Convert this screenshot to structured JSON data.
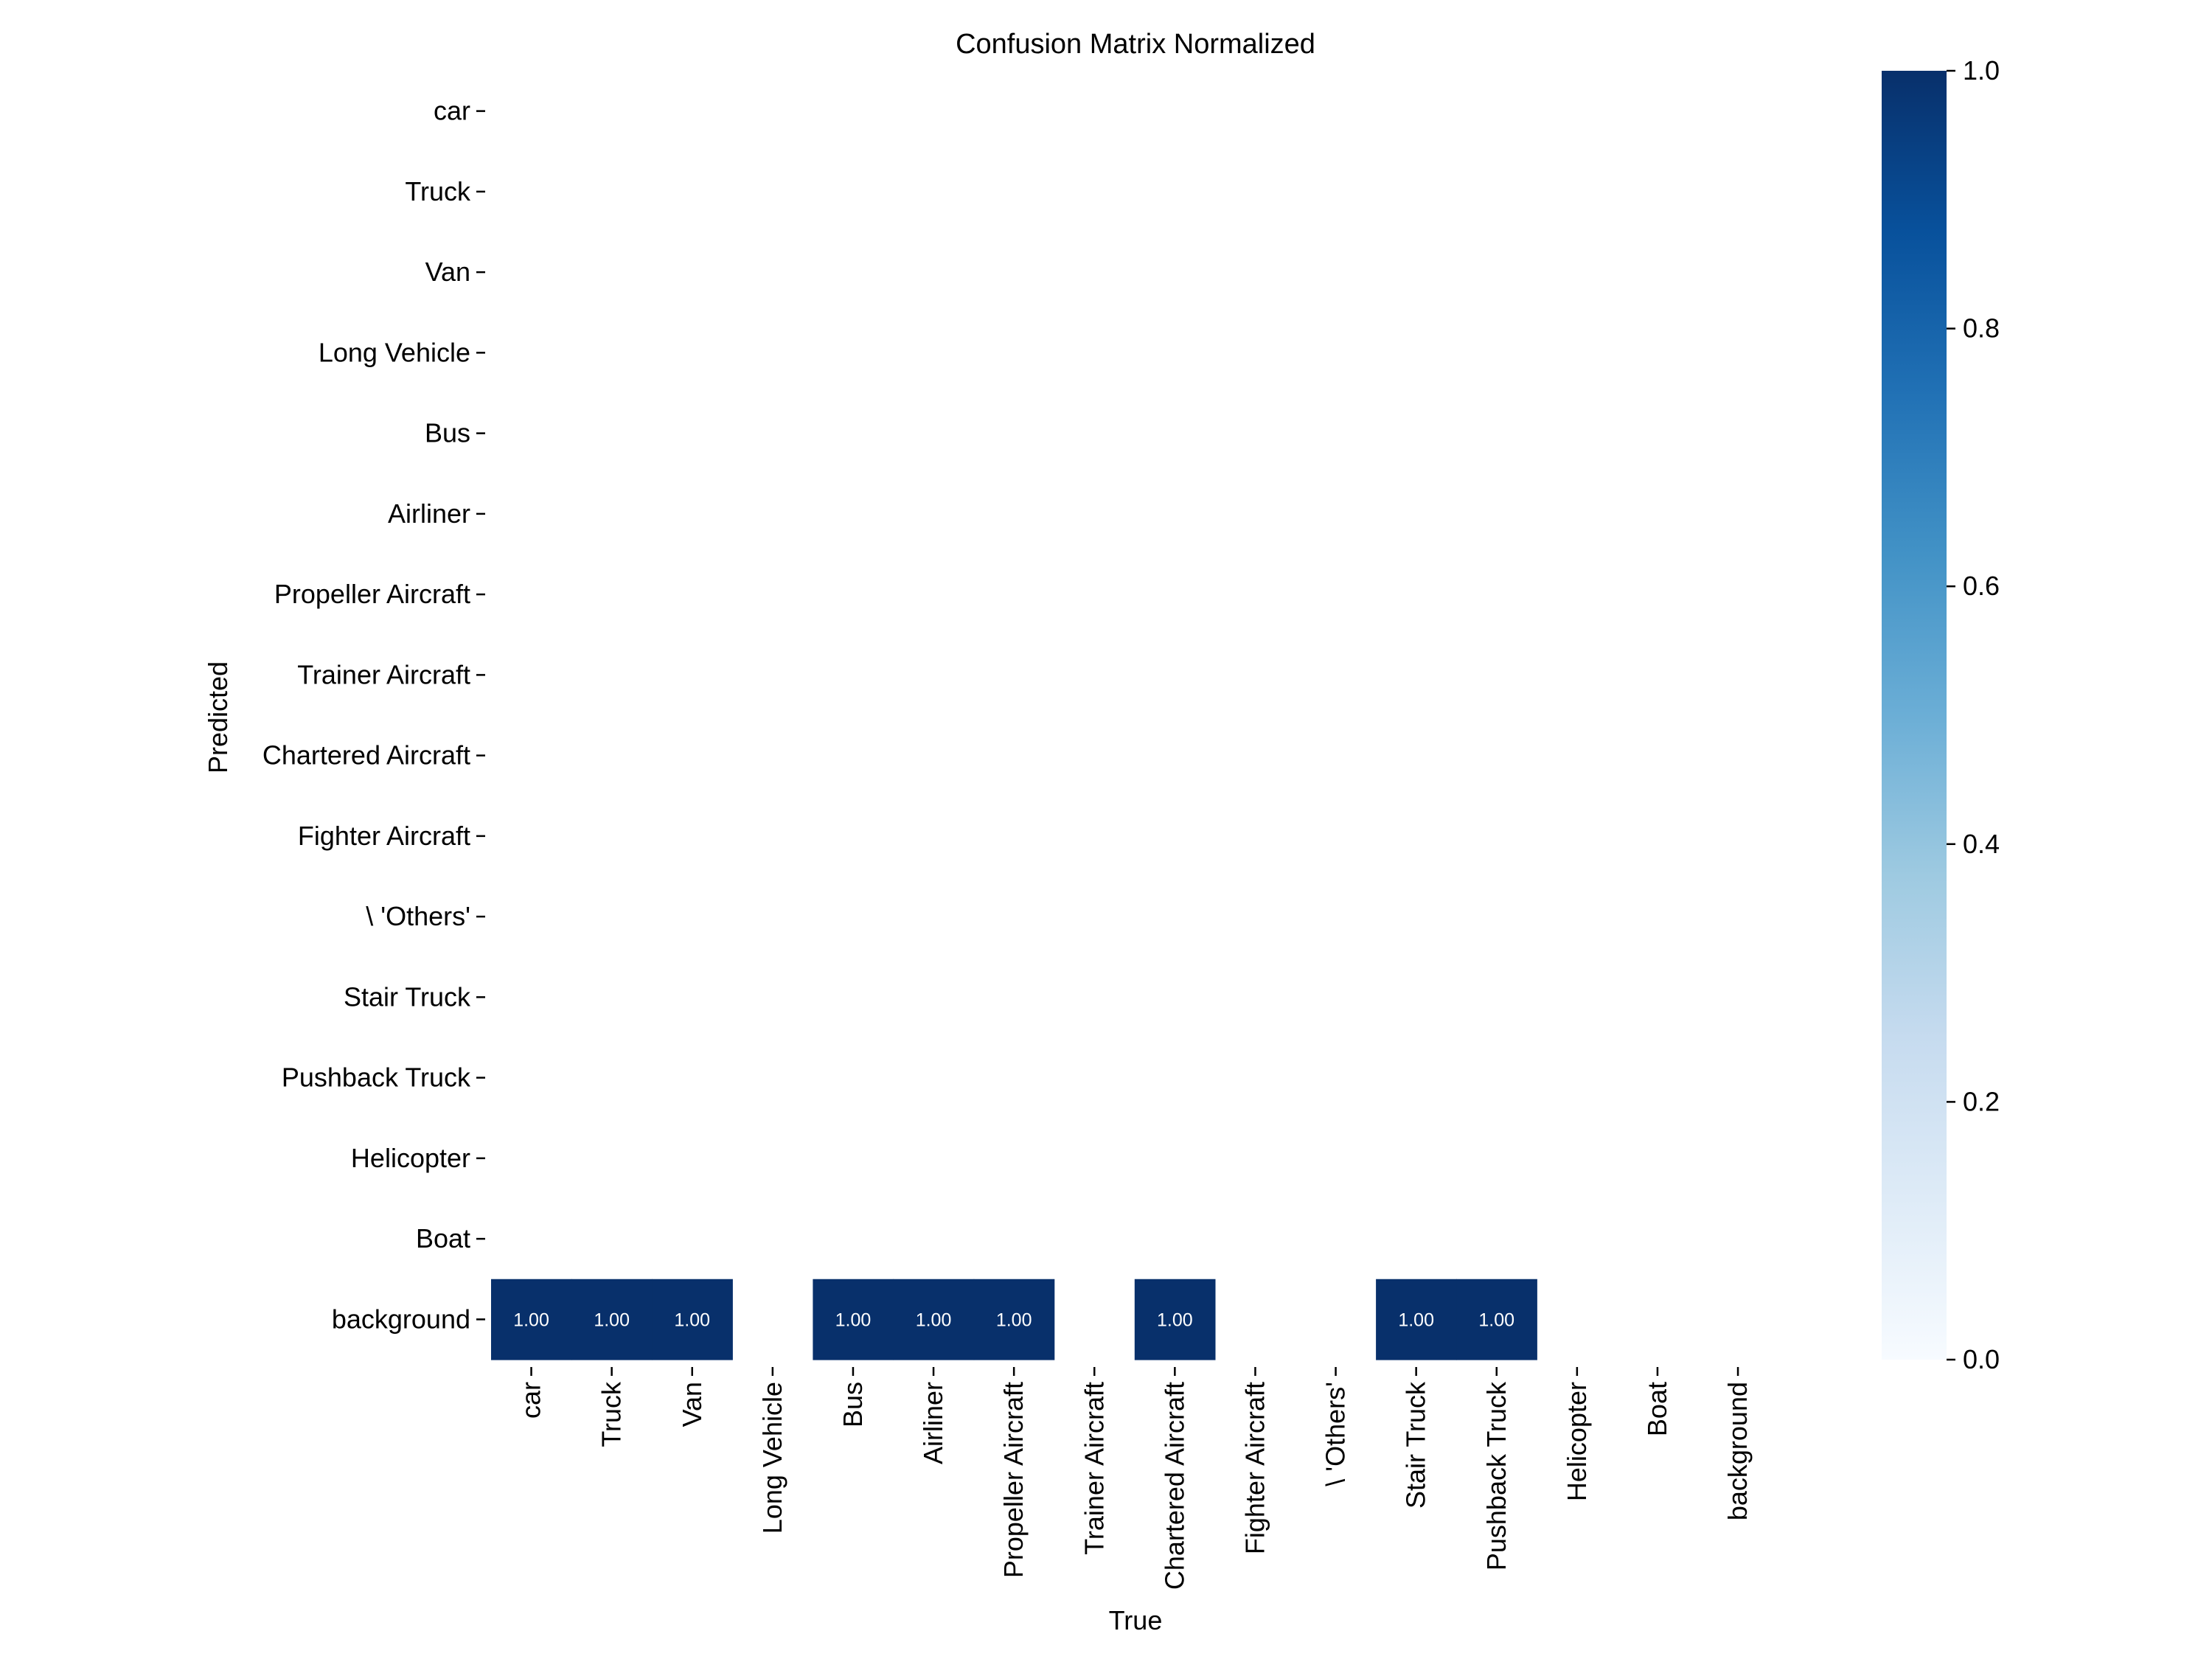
{
  "chart_data": {
    "type": "heatmap",
    "title": "Confusion Matrix Normalized",
    "xlabel": "True",
    "ylabel": "Predicted",
    "row_labels": [
      "car",
      "Truck",
      "Van",
      "Long Vehicle",
      "Bus",
      "Airliner",
      "Propeller Aircraft",
      "Trainer Aircraft",
      "Chartered Aircraft",
      "Fighter Aircraft",
      "\\ 'Others'",
      "Stair Truck",
      "Pushback Truck",
      "Helicopter",
      "Boat",
      "background"
    ],
    "col_labels": [
      "car",
      "Truck",
      "Van",
      "Long Vehicle",
      "Bus",
      "Airliner",
      "Propeller Aircraft",
      "Trainer Aircraft",
      "Chartered Aircraft",
      "Fighter Aircraft",
      "\\ 'Others'",
      "Stair Truck",
      "Pushback Truck",
      "Helicopter",
      "Boat",
      "background"
    ],
    "values": [
      [
        null,
        null,
        null,
        null,
        null,
        null,
        null,
        null,
        null,
        null,
        null,
        null,
        null,
        null,
        null,
        null
      ],
      [
        null,
        null,
        null,
        null,
        null,
        null,
        null,
        null,
        null,
        null,
        null,
        null,
        null,
        null,
        null,
        null
      ],
      [
        null,
        null,
        null,
        null,
        null,
        null,
        null,
        null,
        null,
        null,
        null,
        null,
        null,
        null,
        null,
        null
      ],
      [
        null,
        null,
        null,
        null,
        null,
        null,
        null,
        null,
        null,
        null,
        null,
        null,
        null,
        null,
        null,
        null
      ],
      [
        null,
        null,
        null,
        null,
        null,
        null,
        null,
        null,
        null,
        null,
        null,
        null,
        null,
        null,
        null,
        null
      ],
      [
        null,
        null,
        null,
        null,
        null,
        null,
        null,
        null,
        null,
        null,
        null,
        null,
        null,
        null,
        null,
        null
      ],
      [
        null,
        null,
        null,
        null,
        null,
        null,
        null,
        null,
        null,
        null,
        null,
        null,
        null,
        null,
        null,
        null
      ],
      [
        null,
        null,
        null,
        null,
        null,
        null,
        null,
        null,
        null,
        null,
        null,
        null,
        null,
        null,
        null,
        null
      ],
      [
        null,
        null,
        null,
        null,
        null,
        null,
        null,
        null,
        null,
        null,
        null,
        null,
        null,
        null,
        null,
        null
      ],
      [
        null,
        null,
        null,
        null,
        null,
        null,
        null,
        null,
        null,
        null,
        null,
        null,
        null,
        null,
        null,
        null
      ],
      [
        null,
        null,
        null,
        null,
        null,
        null,
        null,
        null,
        null,
        null,
        null,
        null,
        null,
        null,
        null,
        null
      ],
      [
        null,
        null,
        null,
        null,
        null,
        null,
        null,
        null,
        null,
        null,
        null,
        null,
        null,
        null,
        null,
        null
      ],
      [
        null,
        null,
        null,
        null,
        null,
        null,
        null,
        null,
        null,
        null,
        null,
        null,
        null,
        null,
        null,
        null
      ],
      [
        null,
        null,
        null,
        null,
        null,
        null,
        null,
        null,
        null,
        null,
        null,
        null,
        null,
        null,
        null,
        null
      ],
      [
        null,
        null,
        null,
        null,
        null,
        null,
        null,
        null,
        null,
        null,
        null,
        null,
        null,
        null,
        null,
        null
      ],
      [
        1.0,
        1.0,
        1.0,
        null,
        1.0,
        1.0,
        1.0,
        null,
        1.0,
        null,
        null,
        1.0,
        1.0,
        null,
        null,
        null
      ]
    ],
    "cell_text_format": "0.00",
    "colorbar": {
      "min": 0.0,
      "max": 1.0,
      "ticks": [
        "0.0",
        "0.2",
        "0.4",
        "0.6",
        "0.8",
        "1.0"
      ],
      "colormap": "Blues",
      "stops": [
        "#f7fbff",
        "#deebf7",
        "#c6dbef",
        "#9ecae1",
        "#6baed6",
        "#4292c6",
        "#2171b5",
        "#08519c",
        "#08306b"
      ]
    },
    "grid": false,
    "legend": "colorbar-right"
  }
}
